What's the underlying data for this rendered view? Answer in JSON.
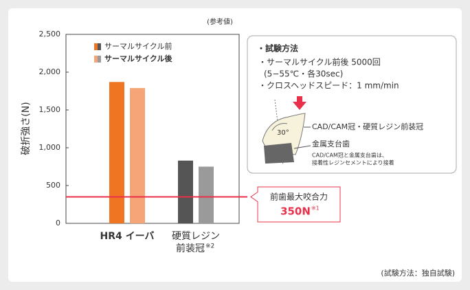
{
  "chart_data": {
    "type": "bar",
    "subtitle": "(参考値)",
    "y_label": "破折強さ(N)",
    "source": "(試験方法：独自試験)",
    "categories": [
      [
        "HR4 イーバ"
      ],
      [
        "硬質レジン",
        "前装冠"
      ]
    ],
    "category_footnote": "※2",
    "series": [
      {
        "name": "サーマルサイクル前",
        "colors": [
          "#f07523",
          "#555555"
        ],
        "values": [
          1870,
          830
        ]
      },
      {
        "name": "サーマルサイクル後",
        "colors": [
          "#f5a577",
          "#9a9a9a"
        ],
        "values": [
          1790,
          750
        ]
      }
    ],
    "ylim": [
      0,
      2500
    ],
    "yticks": [
      0,
      500,
      {
        "value": 1000,
        "label": "1,000"
      },
      {
        "value": 1500,
        "label": "1,500"
      },
      {
        "value": 2000,
        "label": "2,000"
      },
      {
        "value": 2500,
        "label": "2,500"
      }
    ],
    "reference_line": {
      "value": 350,
      "color": "#e8304a",
      "title": "前歯最大咬合力",
      "label": "350N",
      "label_note": "※1"
    },
    "method": {
      "title": "・試験方法",
      "lines": [
        "・サーマルサイクル前後 5000回",
        "(5−55℃・各30sec)",
        "・クロスヘッドスピード：1 mm/min"
      ],
      "angle": "30°",
      "crown_label": "CAD/CAM冠・硬質レジン前装冠",
      "abutment_label": "金属支台歯",
      "note_lines": [
        "CAD/CAM冠と金属支台歯は、",
        "接着性レジンセメントにより接着"
      ]
    }
  }
}
